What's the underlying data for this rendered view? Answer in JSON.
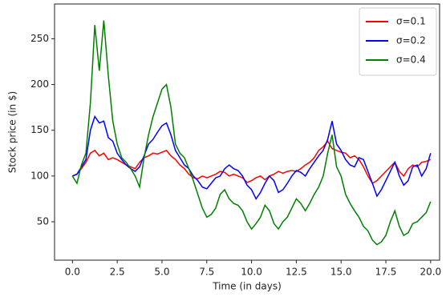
{
  "chart_data": {
    "type": "line",
    "xlabel": "Time (in days)",
    "ylabel": "Stock price (in $)",
    "x": [
      0,
      0.25,
      0.5,
      0.75,
      1,
      1.25,
      1.5,
      1.75,
      2,
      2.25,
      2.5,
      2.75,
      3,
      3.25,
      3.5,
      3.75,
      4,
      4.25,
      4.5,
      4.75,
      5,
      5.25,
      5.5,
      5.75,
      6,
      6.25,
      6.5,
      6.75,
      7,
      7.25,
      7.5,
      7.75,
      8,
      8.25,
      8.5,
      8.75,
      9,
      9.25,
      9.5,
      9.75,
      10,
      10.25,
      10.5,
      10.75,
      11,
      11.25,
      11.5,
      11.75,
      12,
      12.25,
      12.5,
      12.75,
      13,
      13.25,
      13.5,
      13.75,
      14,
      14.25,
      14.5,
      14.75,
      15,
      15.25,
      15.5,
      15.75,
      16,
      16.25,
      16.5,
      16.75,
      17,
      17.25,
      17.5,
      17.75,
      18,
      18.25,
      18.5,
      18.75,
      19,
      19.25,
      19.5,
      19.75,
      20
    ],
    "series": [
      {
        "name": "σ=0.1",
        "color": "#ff0000",
        "values": [
          100,
          102,
          108,
          115,
          125,
          128,
          122,
          125,
          118,
          120,
          118,
          115,
          112,
          110,
          108,
          115,
          120,
          122,
          125,
          124,
          126,
          128,
          122,
          118,
          112,
          108,
          102,
          98,
          97,
          100,
          98,
          100,
          102,
          105,
          104,
          100,
          102,
          100,
          98,
          93,
          95,
          98,
          100,
          96,
          100,
          102,
          105,
          103,
          105,
          106,
          105,
          108,
          112,
          115,
          120,
          128,
          132,
          138,
          130,
          128,
          126,
          125,
          120,
          122,
          118,
          110,
          100,
          92,
          95,
          100,
          105,
          110,
          115,
          105,
          100,
          108,
          112,
          110,
          115,
          116,
          118
        ]
      },
      {
        "name": "σ=0.2",
        "color": "#0000ff",
        "values": [
          100,
          102,
          110,
          118,
          150,
          165,
          158,
          160,
          142,
          138,
          125,
          118,
          112,
          108,
          105,
          110,
          122,
          135,
          140,
          148,
          155,
          158,
          145,
          128,
          120,
          112,
          108,
          100,
          95,
          88,
          86,
          92,
          98,
          100,
          108,
          112,
          108,
          106,
          100,
          90,
          85,
          75,
          82,
          92,
          100,
          95,
          82,
          85,
          92,
          100,
          106,
          104,
          100,
          108,
          115,
          122,
          128,
          140,
          160,
          135,
          128,
          118,
          112,
          110,
          120,
          118,
          105,
          92,
          78,
          85,
          95,
          105,
          115,
          100,
          90,
          95,
          110,
          112,
          100,
          108,
          125
        ]
      },
      {
        "name": "σ=0.4",
        "color": "#008000",
        "values": [
          100,
          92,
          112,
          125,
          180,
          265,
          215,
          270,
          210,
          160,
          135,
          120,
          115,
          108,
          100,
          88,
          120,
          145,
          165,
          180,
          195,
          200,
          175,
          135,
          125,
          120,
          108,
          95,
          80,
          65,
          55,
          58,
          65,
          80,
          85,
          75,
          70,
          68,
          62,
          50,
          42,
          48,
          55,
          68,
          62,
          48,
          42,
          50,
          55,
          65,
          75,
          70,
          62,
          70,
          80,
          88,
          100,
          125,
          145,
          110,
          100,
          80,
          70,
          62,
          55,
          45,
          40,
          30,
          25,
          28,
          35,
          50,
          62,
          45,
          35,
          38,
          48,
          50,
          55,
          60,
          72
        ]
      }
    ],
    "xlim": [
      -1,
      20.5
    ],
    "ylim": [
      8,
      288
    ],
    "xticks": [
      {
        "value": 0,
        "label": "0.0"
      },
      {
        "value": 2.5,
        "label": "2.5"
      },
      {
        "value": 5,
        "label": "5.0"
      },
      {
        "value": 7.5,
        "label": "7.5"
      },
      {
        "value": 10,
        "label": "10.0"
      },
      {
        "value": 12.5,
        "label": "12.5"
      },
      {
        "value": 15,
        "label": "15.0"
      },
      {
        "value": 17.5,
        "label": "17.5"
      },
      {
        "value": 20,
        "label": "20.0"
      }
    ],
    "yticks": [
      50,
      100,
      150,
      200,
      250
    ],
    "grid": false,
    "legend": "upper right"
  }
}
